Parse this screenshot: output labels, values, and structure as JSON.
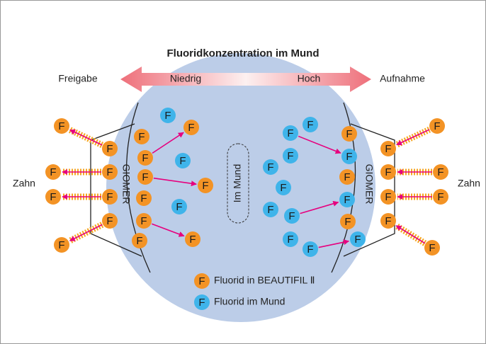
{
  "title": "Fluoridkonzentration im Mund",
  "release": "Freigabe",
  "low": "Niedrig",
  "high": "Hoch",
  "uptake": "Aufnahme",
  "tooth_left": "Zahn",
  "tooth_right": "Zahn",
  "giomer_left": "GIOMER",
  "giomer_right": "GIOMER",
  "mouth": "Im Mund",
  "symbol": "F",
  "legend": [
    {
      "label": "Fluorid in BEAUTIFIL Ⅱ"
    },
    {
      "label": "Fluorid im Mund"
    }
  ]
}
